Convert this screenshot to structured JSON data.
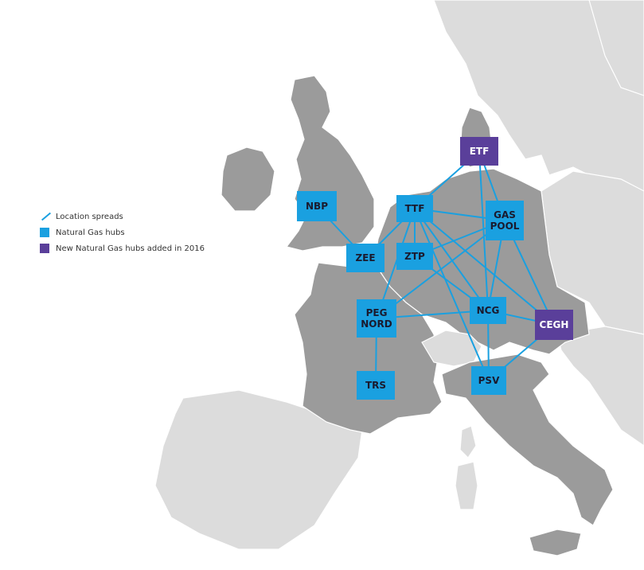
{
  "colors": {
    "spread_line": "#1aa0e0",
    "hub": "#1aa0e0",
    "new_hub": "#5a3f9a",
    "land_highlight": "#9b9b9b",
    "land_other": "#dcdcdc",
    "border": "#ffffff"
  },
  "legend": {
    "location_spreads": "Location spreads",
    "natural_gas_hubs": "Natural Gas hubs",
    "new_hubs_2016": "New Natural Gas hubs added in 2016"
  },
  "hubs": [
    {
      "id": "NBP",
      "lines": [
        "NBP"
      ],
      "new": false
    },
    {
      "id": "ZEE",
      "lines": [
        "ZEE"
      ],
      "new": false
    },
    {
      "id": "TTF",
      "lines": [
        "TTF"
      ],
      "new": false
    },
    {
      "id": "ZTP",
      "lines": [
        "ZTP"
      ],
      "new": false
    },
    {
      "id": "ETF",
      "lines": [
        "ETF"
      ],
      "new": true
    },
    {
      "id": "GASPOOL",
      "lines": [
        "GAS",
        "POOL"
      ],
      "new": false
    },
    {
      "id": "PEGNORD",
      "lines": [
        "PEG",
        "NORD"
      ],
      "new": false
    },
    {
      "id": "NCG",
      "lines": [
        "NCG"
      ],
      "new": false
    },
    {
      "id": "CEGH",
      "lines": [
        "CEGH"
      ],
      "new": true
    },
    {
      "id": "TRS",
      "lines": [
        "TRS"
      ],
      "new": false
    },
    {
      "id": "PSV",
      "lines": [
        "PSV"
      ],
      "new": false
    }
  ],
  "spreads": [
    [
      "NBP",
      "ZEE"
    ],
    [
      "ZEE",
      "TTF"
    ],
    [
      "TTF",
      "ETF"
    ],
    [
      "TTF",
      "GASPOOL"
    ],
    [
      "TTF",
      "ZTP"
    ],
    [
      "TTF",
      "PEGNORD"
    ],
    [
      "TTF",
      "NCG"
    ],
    [
      "TTF",
      "CEGH"
    ],
    [
      "TTF",
      "PSV"
    ],
    [
      "ETF",
      "GASPOOL"
    ],
    [
      "ETF",
      "NCG"
    ],
    [
      "GASPOOL",
      "ZTP"
    ],
    [
      "GASPOOL",
      "NCG"
    ],
    [
      "GASPOOL",
      "CEGH"
    ],
    [
      "GASPOOL",
      "PEGNORD"
    ],
    [
      "ZTP",
      "NCG"
    ],
    [
      "PEGNORD",
      "NCG"
    ],
    [
      "PEGNORD",
      "TRS"
    ],
    [
      "NCG",
      "CEGH"
    ],
    [
      "NCG",
      "PSV"
    ],
    [
      "CEGH",
      "PSV"
    ]
  ]
}
